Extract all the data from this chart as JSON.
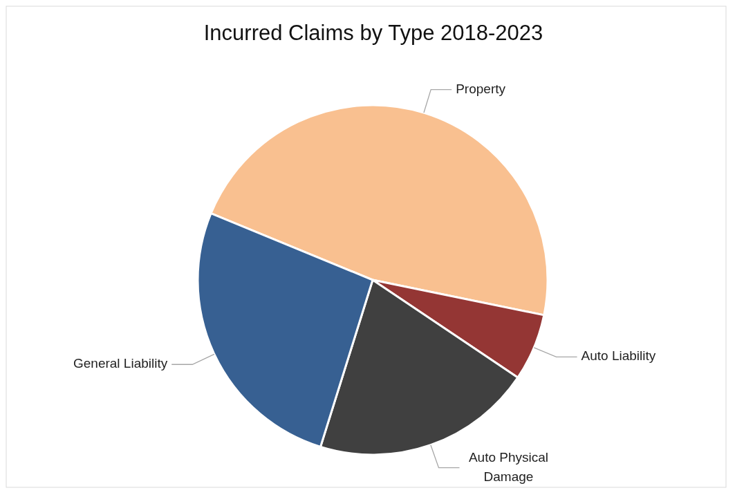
{
  "chart_data": {
    "type": "pie",
    "title": "Incurred Claims by Type 2018-2023",
    "categories": [
      "Property",
      "Auto Liability",
      "Auto Physical Damage",
      "General Liability"
    ],
    "values": [
      47.0,
      6.2,
      20.4,
      26.4
    ],
    "colors": [
      "#f9c090",
      "#943634",
      "#404040",
      "#376092"
    ]
  }
}
